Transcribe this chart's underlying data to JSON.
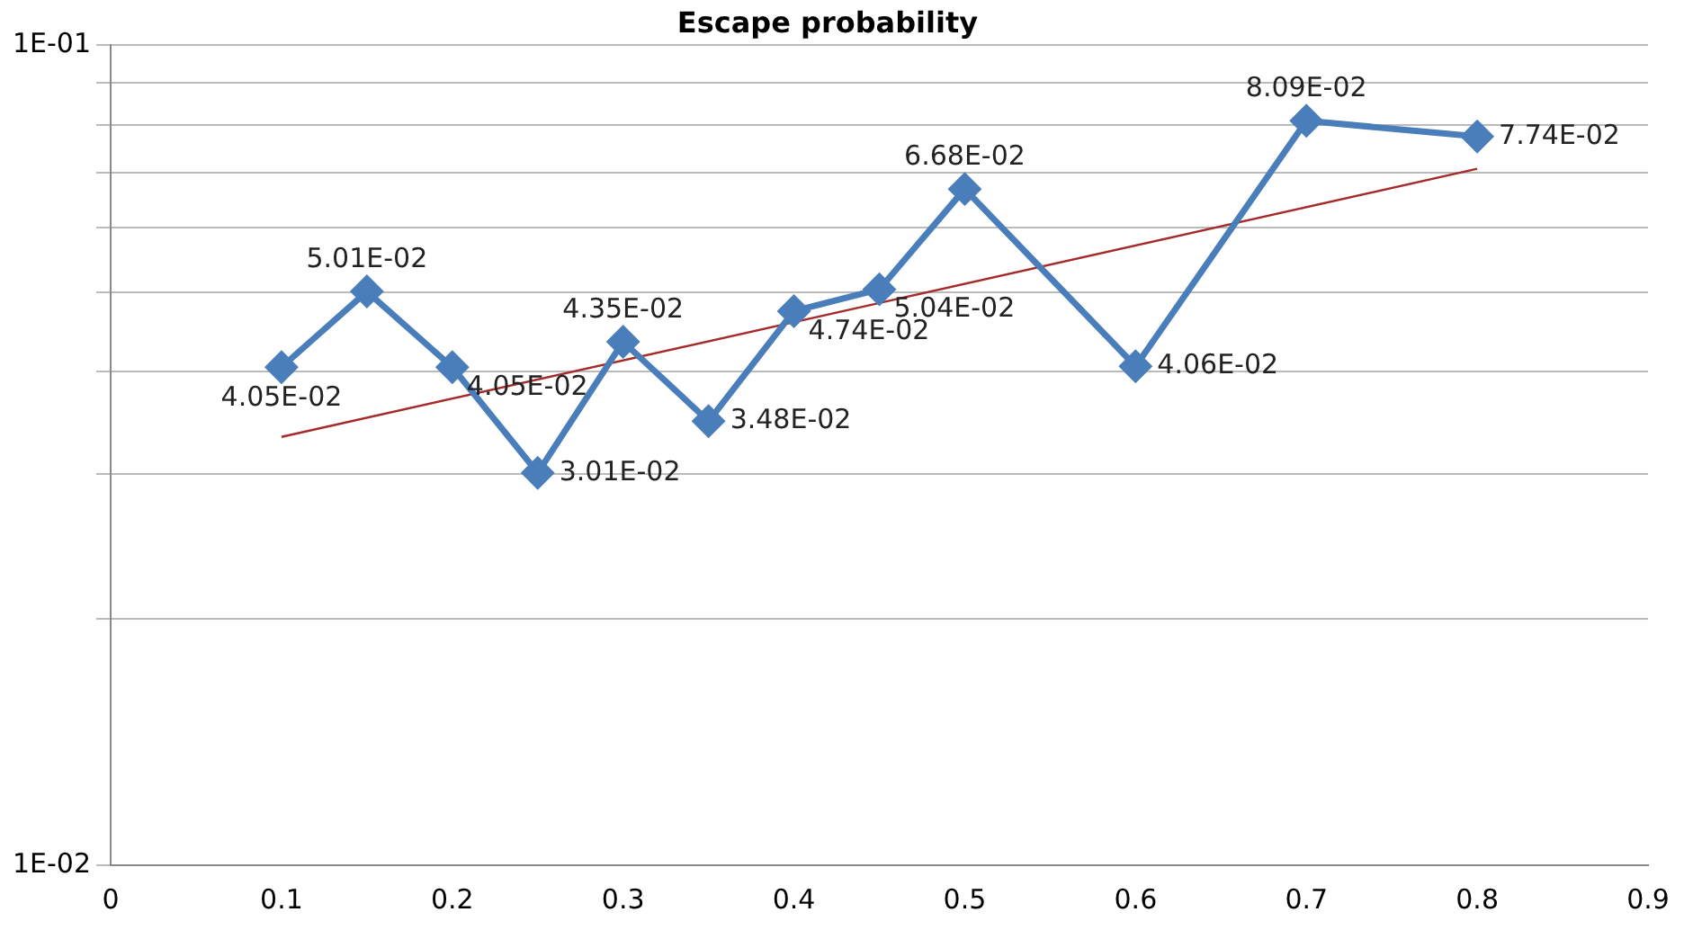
{
  "chart_data": {
    "type": "line",
    "title": "Escape probability",
    "x": [
      0.1,
      0.15,
      0.2,
      0.25,
      0.3,
      0.35,
      0.4,
      0.45,
      0.5,
      0.6,
      0.7,
      0.8
    ],
    "series": [
      {
        "color": "#4a7ebb",
        "values": [
          0.0405,
          0.0501,
          0.0405,
          0.0301,
          0.0435,
          0.0348,
          0.0474,
          0.0504,
          0.0668,
          0.0406,
          0.0809,
          0.0774
        ],
        "value_labels": [
          "4.05E-02",
          "5.01E-02",
          "4.05E-02",
          "3.01E-02",
          "4.35E-02",
          "3.48E-02",
          "4.74E-02",
          "5.04E-02",
          "6.68E-02",
          "4.06E-02",
          "8.09E-02",
          "7.74E-02"
        ],
        "marker": "diamond"
      },
      {
        "type": "line",
        "color": "#a52a2a",
        "x": [
          0.1,
          0.45,
          0.8
        ],
        "values": [
          0.0333,
          0.0485,
          0.0707
        ],
        "marker": "none"
      }
    ],
    "log": "y",
    "ylim": [
      0.01,
      0.1
    ],
    "yticks": [
      {
        "value": 0.01,
        "label": "1E-02"
      },
      {
        "value": 0.02,
        "label": null
      },
      {
        "value": 0.03,
        "label": null
      },
      {
        "value": 0.04,
        "label": null
      },
      {
        "value": 0.05,
        "label": null
      },
      {
        "value": 0.06,
        "label": null
      },
      {
        "value": 0.07,
        "label": null
      },
      {
        "value": 0.08,
        "label": null
      },
      {
        "value": 0.09,
        "label": null
      },
      {
        "value": 0.1,
        "label": "1E-01"
      }
    ],
    "xlim": [
      0,
      0.9
    ],
    "xticks": [
      0,
      0.1,
      0.2,
      0.3,
      0.4,
      0.5,
      0.6,
      0.7,
      0.8,
      0.9
    ],
    "grid": "y",
    "legend": false
  }
}
